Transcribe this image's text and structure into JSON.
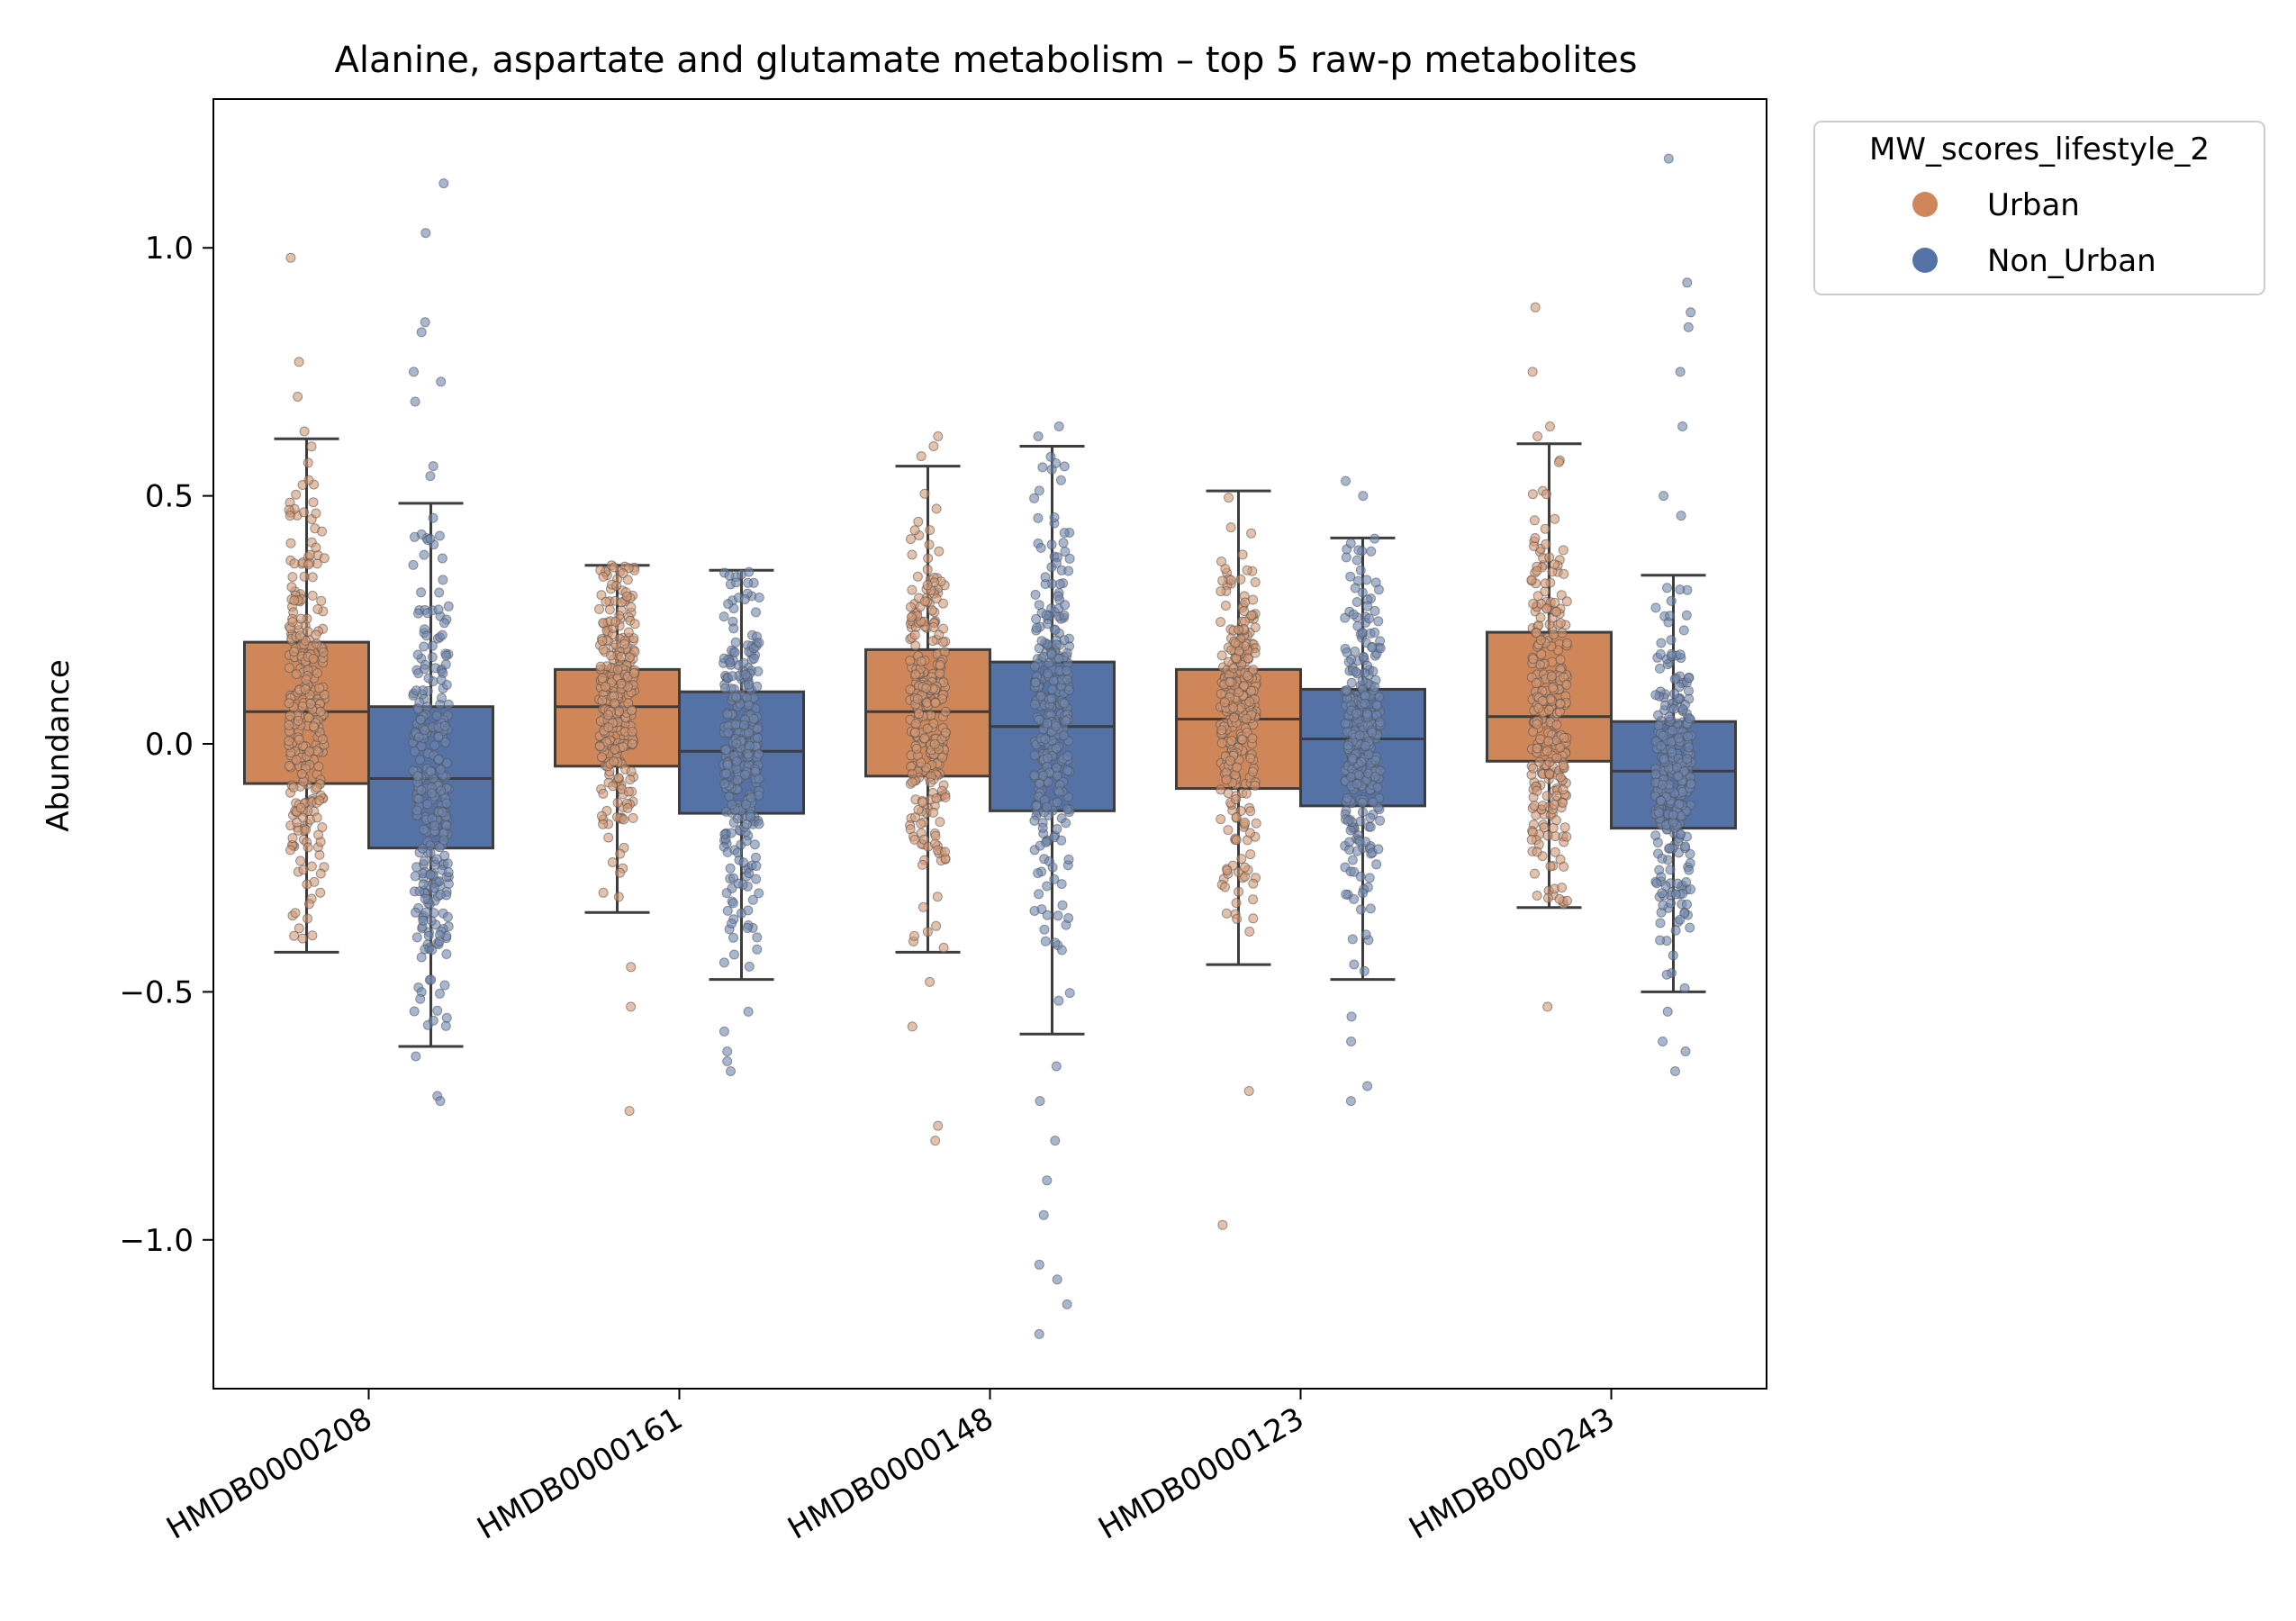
{
  "chart_data": {
    "type": "box",
    "title": "Alanine, aspartate and glutamate metabolism  –  top 5 raw-p metabolites",
    "xlabel": "",
    "ylabel": "Abundance",
    "ylim": [
      -1.3,
      1.3
    ],
    "yticks": [
      1.0,
      0.5,
      0.0,
      -0.5,
      -1.0
    ],
    "ytick_labels": [
      "1.0",
      "0.5",
      "0.0",
      "−0.5",
      "−1.0"
    ],
    "categories": [
      "HMDB0000208",
      "HMDB0000161",
      "HMDB0000148",
      "HMDB0000123",
      "HMDB0000243"
    ],
    "legend": {
      "title": "MW_scores_lifestyle_2",
      "placement": "outside-top-right"
    },
    "series": [
      {
        "name": "Urban",
        "color": "#cf8659",
        "boxes": [
          {
            "whisker_low": -0.42,
            "q1": -0.08,
            "median": 0.065,
            "q3": 0.205,
            "whisker_high": 0.615,
            "outliers": [
              0.98,
              0.77,
              0.7,
              0.63
            ]
          },
          {
            "whisker_low": -0.34,
            "q1": -0.045,
            "median": 0.075,
            "q3": 0.15,
            "whisker_high": 0.36,
            "outliers": [
              -0.45,
              -0.53,
              -0.74
            ]
          },
          {
            "whisker_low": -0.42,
            "q1": -0.065,
            "median": 0.065,
            "q3": 0.19,
            "whisker_high": 0.56,
            "outliers": [
              0.62,
              0.6,
              0.58,
              -0.48,
              -0.57,
              -0.77,
              -0.8
            ]
          },
          {
            "whisker_low": -0.445,
            "q1": -0.09,
            "median": 0.05,
            "q3": 0.15,
            "whisker_high": 0.51,
            "outliers": [
              -0.7,
              -0.97
            ]
          },
          {
            "whisker_low": -0.33,
            "q1": -0.035,
            "median": 0.055,
            "q3": 0.225,
            "whisker_high": 0.605,
            "outliers": [
              0.88,
              0.75,
              0.64,
              0.62,
              -0.53
            ]
          }
        ]
      },
      {
        "name": "Non_Urban",
        "color": "#5472a6",
        "boxes": [
          {
            "whisker_low": -0.61,
            "q1": -0.21,
            "median": -0.07,
            "q3": 0.075,
            "whisker_high": 0.485,
            "outliers": [
              1.13,
              1.03,
              0.85,
              0.83,
              0.75,
              0.73,
              0.69,
              0.56,
              0.54,
              -0.63,
              -0.71,
              -0.72
            ]
          },
          {
            "whisker_low": -0.475,
            "q1": -0.14,
            "median": -0.015,
            "q3": 0.105,
            "whisker_high": 0.35,
            "outliers": [
              -0.54,
              -0.58,
              -0.62,
              -0.64,
              -0.66
            ]
          },
          {
            "whisker_low": -0.585,
            "q1": -0.135,
            "median": 0.035,
            "q3": 0.165,
            "whisker_high": 0.6,
            "outliers": [
              0.64,
              0.62,
              -0.65,
              -0.72,
              -0.8,
              -0.88,
              -0.95,
              -1.05,
              -1.08,
              -1.13,
              -1.19
            ]
          },
          {
            "whisker_low": -0.475,
            "q1": -0.125,
            "median": 0.01,
            "q3": 0.11,
            "whisker_high": 0.415,
            "outliers": [
              0.53,
              0.5,
              -0.55,
              -0.6,
              -0.69,
              -0.72
            ]
          },
          {
            "whisker_low": -0.5,
            "q1": -0.17,
            "median": -0.055,
            "q3": 0.045,
            "whisker_high": 0.34,
            "outliers": [
              1.18,
              0.93,
              0.87,
              0.84,
              0.75,
              0.64,
              0.5,
              0.46,
              -0.54,
              -0.6,
              -0.62,
              -0.66
            ]
          }
        ]
      }
    ]
  }
}
